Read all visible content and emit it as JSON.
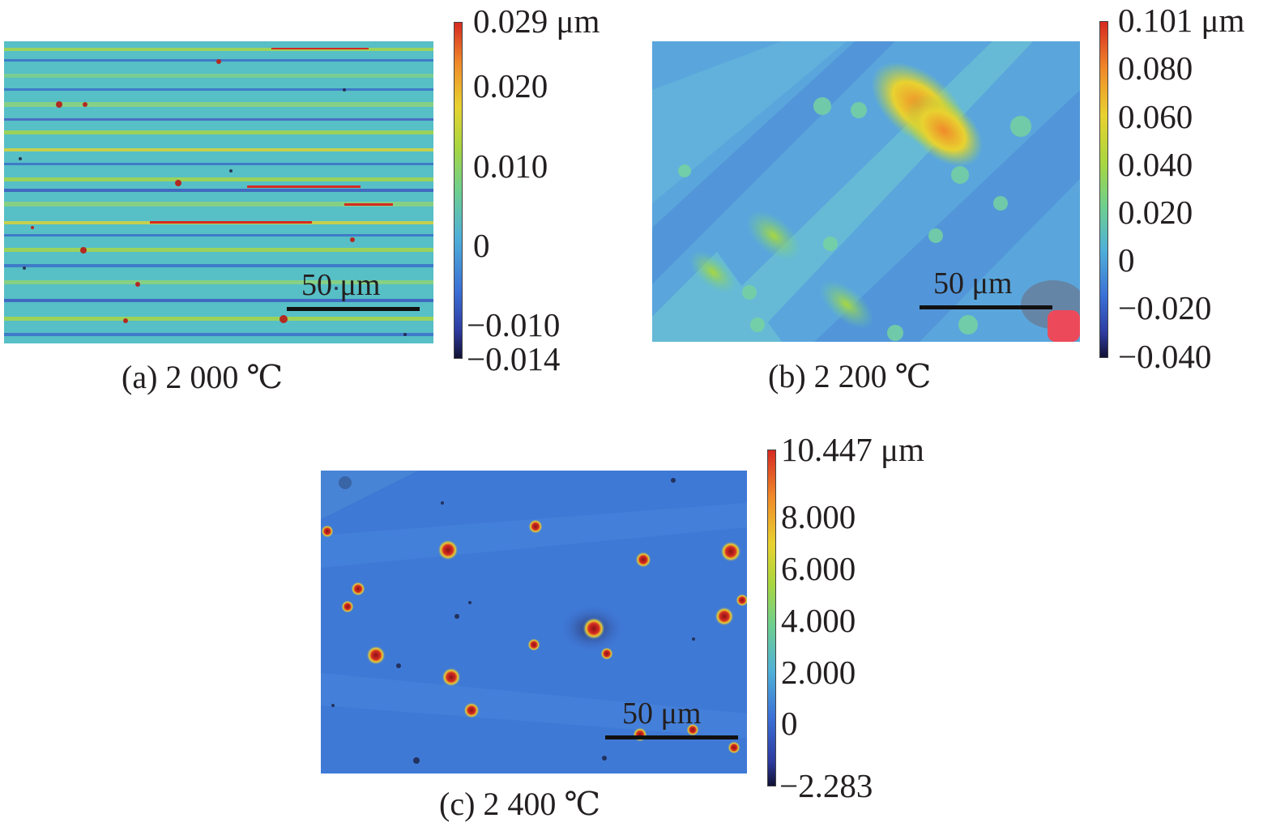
{
  "panels": [
    {
      "caption": "(a) 2 000 ℃",
      "scale_bar": "50 μm",
      "colorbar_ticks": [
        "0.029 μm",
        "0.020",
        "0.010",
        "0",
        "−0.010",
        "−0.014"
      ]
    },
    {
      "caption": "(b) 2 200 ℃",
      "scale_bar": "50 μm",
      "colorbar_ticks": [
        "0.101 μm",
        "0.080",
        "0.060",
        "0.040",
        "0.020",
        "0",
        "−0.020",
        "−0.040"
      ]
    },
    {
      "caption": "(c) 2 400 ℃",
      "scale_bar": "50 μm",
      "colorbar_ticks": [
        "10.447 μm",
        "8.000",
        "6.000",
        "4.000",
        "2.000",
        "0",
        "−2.283"
      ]
    }
  ],
  "colormap": [
    "#111133",
    "#2d3a9e",
    "#3b6fd6",
    "#4fb0d8",
    "#6ecf8e",
    "#a8d640",
    "#e8d230",
    "#f08a2a",
    "#d62a22"
  ]
}
